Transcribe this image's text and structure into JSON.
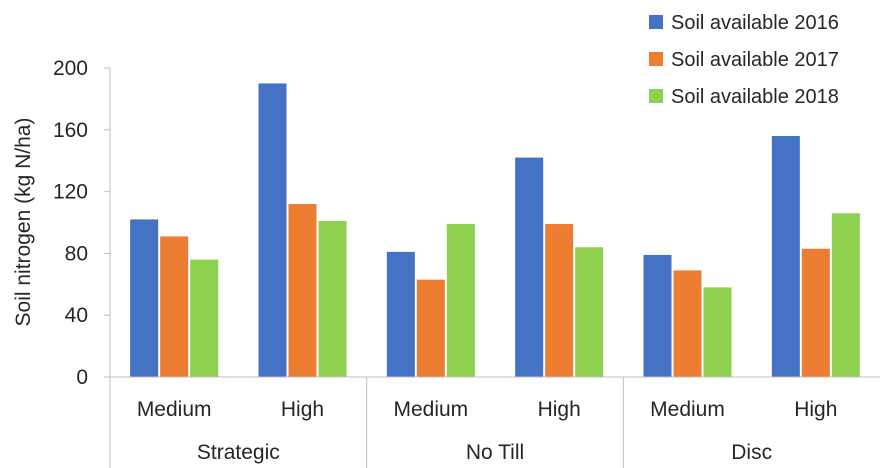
{
  "chart_data": {
    "type": "bar",
    "ylabel": "Soil nitrogen (kg N/ha)",
    "xlabel": "",
    "ylim": [
      0,
      200
    ],
    "yticks": [
      0,
      40,
      80,
      120,
      160,
      200
    ],
    "grid": false,
    "legend_position": "top-right",
    "groups": [
      {
        "label": "Strategic",
        "categories": [
          "Medium",
          "High"
        ]
      },
      {
        "label": "No Till",
        "categories": [
          "Medium",
          "High"
        ]
      },
      {
        "label": "Disc",
        "categories": [
          "Medium",
          "High"
        ]
      }
    ],
    "series": [
      {
        "name": "Soil available 2016",
        "color": "#4472C4",
        "values": [
          102,
          190,
          81,
          142,
          79,
          156
        ]
      },
      {
        "name": "Soil available 2017",
        "color": "#ED7D31",
        "values": [
          91,
          112,
          63,
          99,
          69,
          83
        ]
      },
      {
        "name": "Soil available 2018",
        "color": "#8FD14F",
        "values": [
          76,
          101,
          99,
          84,
          58,
          106
        ]
      }
    ]
  }
}
